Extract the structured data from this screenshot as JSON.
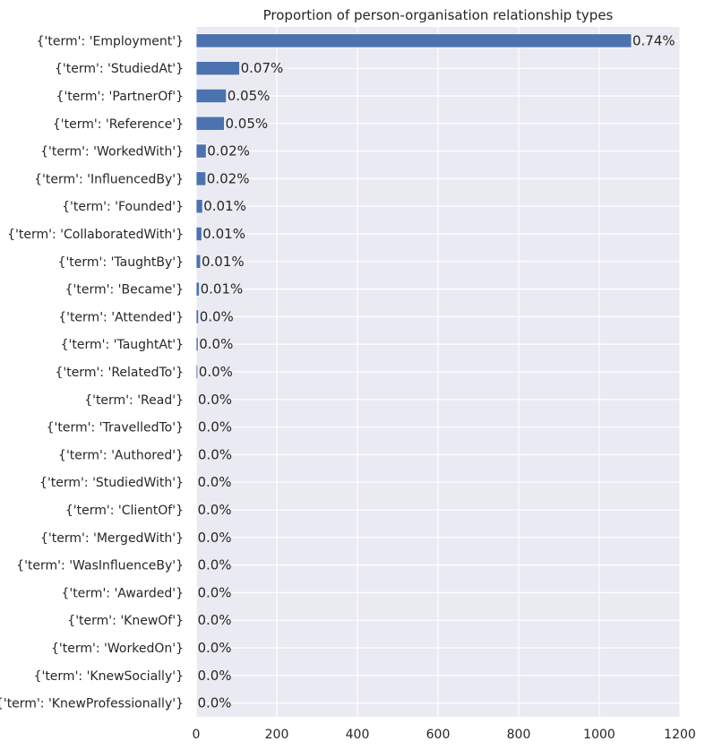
{
  "chart_data": {
    "type": "bar",
    "orientation": "horizontal",
    "title": "Proportion of person-organisation relationship types",
    "xlabel": "",
    "ylabel": "",
    "xlim": [
      0,
      1200
    ],
    "xticks": [
      0,
      200,
      400,
      600,
      800,
      1000,
      1200
    ],
    "grid": true,
    "categories": [
      "{'term': 'Employment'}",
      "{'term': 'StudiedAt'}",
      "{'term': 'PartnerOf'}",
      "{'term': 'Reference'}",
      "{'term': 'WorkedWith'}",
      "{'term': 'InfluencedBy'}",
      "{'term': 'Founded'}",
      "{'term': 'CollaboratedWith'}",
      "{'term': 'TaughtBy'}",
      "{'term': 'Became'}",
      "{'term': 'Attended'}",
      "{'term': 'TaughtAt'}",
      "{'term': 'RelatedTo'}",
      "{'term': 'Read'}",
      "{'term': 'TravelledTo'}",
      "{'term': 'Authored'}",
      "{'term': 'StudiedWith'}",
      "{'term': 'ClientOf'}",
      "{'term': 'MergedWith'}",
      "{'term': 'WasInfluenceBy'}",
      "{'term': 'Awarded'}",
      "{'term': 'KnewOf'}",
      "{'term': 'WorkedOn'}",
      "{'term': 'KnewSocially'}",
      "{'term': 'KnewProfessionally'}"
    ],
    "values": [
      1080,
      108,
      75,
      70,
      25,
      24,
      16,
      14,
      11,
      8,
      6,
      5,
      4,
      2,
      2,
      2,
      1,
      1,
      1,
      1,
      1,
      1,
      1,
      1,
      1
    ],
    "data_labels": [
      "0.74%",
      "0.07%",
      "0.05%",
      "0.05%",
      "0.02%",
      "0.02%",
      "0.01%",
      "0.01%",
      "0.01%",
      "0.01%",
      "0.0%",
      "0.0%",
      "0.0%",
      "0.0%",
      "0.0%",
      "0.0%",
      "0.0%",
      "0.0%",
      "0.0%",
      "0.0%",
      "0.0%",
      "0.0%",
      "0.0%",
      "0.0%",
      "0.0%"
    ],
    "colors": {
      "bar": "#4c72b0",
      "plot_background": "#eaeaf2",
      "grid": "#ffffff",
      "text": "#262626"
    }
  }
}
